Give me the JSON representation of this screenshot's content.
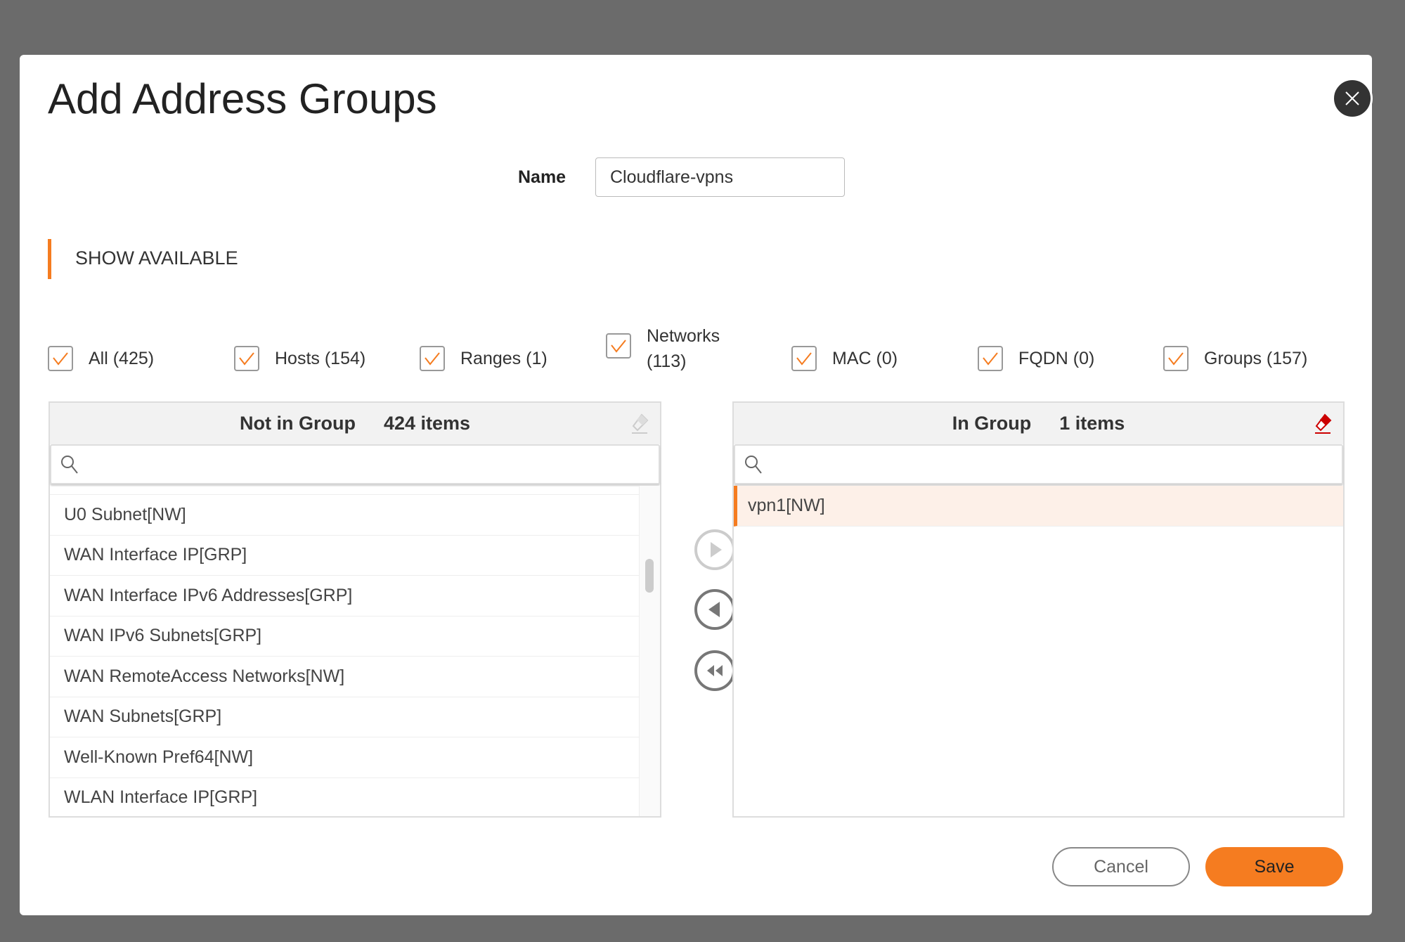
{
  "dialog": {
    "title": "Add Address Groups"
  },
  "name_field": {
    "label": "Name",
    "value": "Cloudflare-vpns"
  },
  "section": {
    "label": "SHOW AVAILABLE"
  },
  "filters": [
    {
      "label": "All (425)",
      "checked": true
    },
    {
      "label": "Hosts (154)",
      "checked": true
    },
    {
      "label": "Ranges (1)",
      "checked": true
    },
    {
      "label": "Networks (113)",
      "line1": "Networks",
      "line2": "(113)",
      "checked": true
    },
    {
      "label": "MAC (0)",
      "checked": true
    },
    {
      "label": "FQDN (0)",
      "checked": true
    },
    {
      "label": "Groups (157)",
      "checked": true
    }
  ],
  "left_panel": {
    "title": "Not in Group",
    "count": "424 items",
    "search_placeholder": "",
    "items": [
      "U0 Subnet[NW]",
      "WAN Interface IP[GRP]",
      "WAN Interface IPv6 Addresses[GRP]",
      "WAN IPv6 Subnets[GRP]",
      "WAN RemoteAccess Networks[NW]",
      "WAN Subnets[GRP]",
      "Well-Known Pref64[NW]",
      "WLAN Interface IP[GRP]"
    ]
  },
  "right_panel": {
    "title": "In Group",
    "count": "1 items",
    "search_placeholder": "",
    "items": [
      "vpn1[NW]"
    ]
  },
  "buttons": {
    "cancel": "Cancel",
    "save": "Save"
  },
  "colors": {
    "accent": "#f57c20",
    "selected_row": "#fdf0e8",
    "eraser_active": "#cc0000"
  }
}
